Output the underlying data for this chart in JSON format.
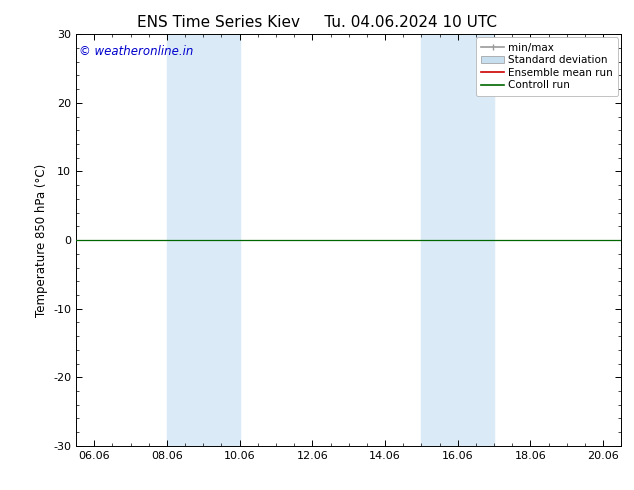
{
  "title": "ENS Time Series Kiev",
  "subtitle": "Tu. 04.06.2024 10 UTC",
  "ylabel": "Temperature 850 hPa (°C)",
  "xlabel": "",
  "xlim_start": 5.5,
  "xlim_end": 20.5,
  "ylim": [
    -30,
    30
  ],
  "yticks": [
    -30,
    -20,
    -10,
    0,
    10,
    20,
    30
  ],
  "xtick_labels": [
    "06.06",
    "08.06",
    "10.06",
    "12.06",
    "14.06",
    "16.06",
    "18.06",
    "20.06"
  ],
  "xtick_positions": [
    6,
    8,
    10,
    12,
    14,
    16,
    18,
    20
  ],
  "watermark": "© weatheronline.in",
  "watermark_color": "#0000cc",
  "background_color": "#ffffff",
  "plot_bg_color": "#ffffff",
  "shaded_bands": [
    {
      "x_start": 8.0,
      "x_end": 10.0,
      "color": "#daeaf7"
    },
    {
      "x_start": 15.0,
      "x_end": 17.0,
      "color": "#daeaf7"
    }
  ],
  "control_run_y": 0.0,
  "control_run_color": "#006600",
  "ensemble_mean_color": "#cc0000",
  "minmax_color": "#999999",
  "std_dev_color": "#c8dff0",
  "legend_entries": [
    "min/max",
    "Standard deviation",
    "Ensemble mean run",
    "Controll run"
  ],
  "zero_line_y": 0.0,
  "font_size_title": 11,
  "font_size_labels": 8.5,
  "font_size_ticks": 8,
  "font_size_legend": 7.5,
  "font_size_watermark": 8.5
}
